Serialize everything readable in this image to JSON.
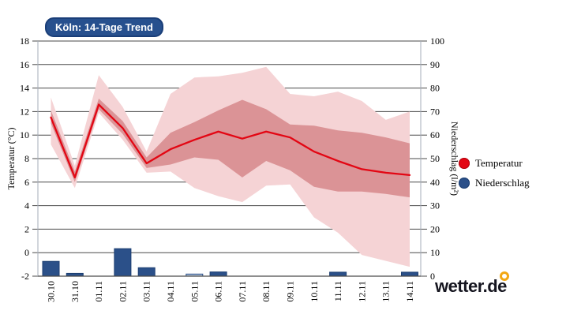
{
  "title_badge": {
    "label": "Köln: 14-Tage Trend"
  },
  "legend": {
    "items": [
      {
        "label": "Temperatur",
        "color": "#e30613",
        "edge": "#b00510"
      },
      {
        "label": "Niederschlag",
        "color": "#2b5089",
        "edge": "#1c3e71"
      }
    ]
  },
  "logo": {
    "text": "wetter.de",
    "accent_color": "#f3a712"
  },
  "chart_data": {
    "type": "combo",
    "subtype": "line-with-uncertainty-bands-plus-bars",
    "title": "Köln: 14-Tage Trend",
    "categories": [
      "30.10",
      "31.10",
      "01.11",
      "02.11",
      "03.11",
      "04.11",
      "05.11",
      "06.11",
      "07.11",
      "08.11",
      "09.11",
      "10.11",
      "11.11",
      "12.11",
      "13.11",
      "14.11"
    ],
    "left_axis": {
      "label": "Temperatur (°C)",
      "min": -2,
      "max": 18,
      "step": 2,
      "ticks": [
        18,
        16,
        14,
        12,
        10,
        8,
        6,
        4,
        2,
        0,
        -2
      ]
    },
    "right_axis": {
      "label": "Niederschlag (l/m²)",
      "min": 0,
      "max": 100,
      "step": 10,
      "ticks": [
        100,
        90,
        80,
        70,
        60,
        50,
        40,
        30,
        20,
        10,
        0
      ]
    },
    "grid": true,
    "legend_position": "right",
    "series": [
      {
        "name": "Temperatur",
        "type": "line",
        "axis": "left",
        "color": "#e30613",
        "values": [
          11.5,
          6.4,
          12.6,
          10.6,
          7.6,
          8.8,
          9.6,
          10.3,
          9.7,
          10.3,
          9.8,
          8.6,
          7.8,
          7.1,
          6.8,
          6.6
        ]
      },
      {
        "name": "range_inner",
        "type": "band",
        "axis": "left",
        "color": "#db9396",
        "upper": [
          12.1,
          6.9,
          13.1,
          11.2,
          8.1,
          10.2,
          11.1,
          12.1,
          13.0,
          12.2,
          10.9,
          10.8,
          10.4,
          10.2,
          9.8,
          9.3
        ],
        "lower": [
          11.0,
          6.0,
          12.2,
          10.1,
          7.2,
          7.5,
          8.1,
          7.9,
          6.4,
          7.8,
          7.0,
          5.6,
          5.2,
          5.2,
          5.0,
          4.7
        ]
      },
      {
        "name": "range_outer",
        "type": "band",
        "axis": "left",
        "color": "#f5d3d5",
        "upper": [
          13.2,
          7.4,
          15.1,
          12.4,
          8.6,
          13.5,
          14.9,
          15.0,
          15.3,
          15.8,
          13.5,
          13.3,
          13.7,
          12.9,
          11.3,
          12.0
        ],
        "lower": [
          9.2,
          5.5,
          11.9,
          9.6,
          6.8,
          6.9,
          5.5,
          4.8,
          4.3,
          5.7,
          5.8,
          3.0,
          1.7,
          -0.2,
          -0.7,
          -1.2
        ]
      },
      {
        "name": "Niederschlag",
        "type": "bar",
        "axis": "right",
        "color": "#2b5089",
        "edge": "#1c3e71",
        "light_color": "#afc3d9",
        "values": [
          6.3,
          1.2,
          0,
          11.7,
          3.6,
          0,
          0.9,
          1.8,
          0,
          0,
          0,
          0,
          1.7,
          0,
          0,
          1.7
        ],
        "light_indices": [
          6
        ]
      }
    ]
  },
  "style": {
    "grid_color": "#4a4a4a",
    "spine_color": "#a6adba",
    "tick_text_color": "#000000"
  }
}
